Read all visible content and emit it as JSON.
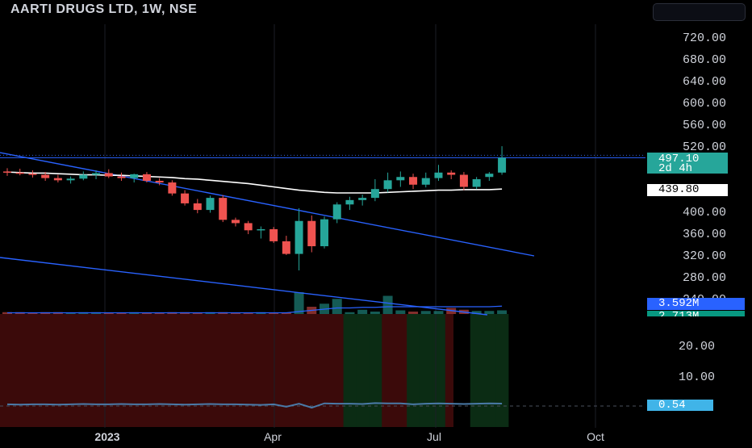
{
  "header": {
    "title": "AARTI DRUGS LTD, 1W, NSE"
  },
  "price_tags": {
    "last_price": "497.10",
    "countdown": "2d 4h",
    "ma_value": "439.80",
    "volume_1": "3.592M",
    "volume_2": "2.713M",
    "oscillator": "0.54"
  },
  "colors": {
    "up": "#26a69a",
    "down": "#ef5350",
    "trendline": "#2962ff",
    "moving_average": "#ffffff",
    "oscillator_line": "#4a7aa8",
    "up_zone": "#0b2c14",
    "down_zone": "#3b0a0a"
  },
  "chart_data": [
    {
      "type": "candlestick",
      "title": "AARTI DRUGS LTD, 1W, NSE",
      "y_ticks": [
        "720.00",
        "680.00",
        "640.00",
        "600.00",
        "560.00",
        "520.00",
        "400.00",
        "360.00",
        "320.00",
        "280.00",
        "240.00"
      ],
      "ylim": [
        230,
        740
      ],
      "x_ticks": [
        "2023",
        "Apr",
        "Jul",
        "Oct"
      ],
      "candles": [
        {
          "o": 472,
          "h": 478,
          "l": 464,
          "c": 470
        },
        {
          "o": 470,
          "h": 477,
          "l": 465,
          "c": 468
        },
        {
          "o": 468,
          "h": 474,
          "l": 461,
          "c": 466
        },
        {
          "o": 466,
          "h": 471,
          "l": 455,
          "c": 460
        },
        {
          "o": 460,
          "h": 466,
          "l": 452,
          "c": 456
        },
        {
          "o": 456,
          "h": 463,
          "l": 450,
          "c": 459
        },
        {
          "o": 459,
          "h": 472,
          "l": 456,
          "c": 466
        },
        {
          "o": 466,
          "h": 474,
          "l": 458,
          "c": 469
        },
        {
          "o": 469,
          "h": 476,
          "l": 460,
          "c": 463
        },
        {
          "o": 463,
          "h": 470,
          "l": 455,
          "c": 460
        },
        {
          "o": 460,
          "h": 468,
          "l": 452,
          "c": 467
        },
        {
          "o": 467,
          "h": 471,
          "l": 452,
          "c": 455
        },
        {
          "o": 455,
          "h": 460,
          "l": 447,
          "c": 452
        },
        {
          "o": 452,
          "h": 456,
          "l": 428,
          "c": 432
        },
        {
          "o": 432,
          "h": 438,
          "l": 410,
          "c": 414
        },
        {
          "o": 414,
          "h": 422,
          "l": 396,
          "c": 402
        },
        {
          "o": 402,
          "h": 428,
          "l": 397,
          "c": 424
        },
        {
          "o": 424,
          "h": 429,
          "l": 380,
          "c": 384
        },
        {
          "o": 384,
          "h": 388,
          "l": 372,
          "c": 378
        },
        {
          "o": 378,
          "h": 382,
          "l": 358,
          "c": 365
        },
        {
          "o": 365,
          "h": 372,
          "l": 350,
          "c": 367
        },
        {
          "o": 367,
          "h": 371,
          "l": 342,
          "c": 345
        },
        {
          "o": 345,
          "h": 355,
          "l": 320,
          "c": 322
        },
        {
          "o": 322,
          "h": 405,
          "l": 292,
          "c": 382
        },
        {
          "o": 382,
          "h": 392,
          "l": 325,
          "c": 336
        },
        {
          "o": 336,
          "h": 390,
          "l": 332,
          "c": 385
        },
        {
          "o": 385,
          "h": 416,
          "l": 378,
          "c": 412
        },
        {
          "o": 412,
          "h": 426,
          "l": 402,
          "c": 420
        },
        {
          "o": 420,
          "h": 430,
          "l": 410,
          "c": 424
        },
        {
          "o": 424,
          "h": 458,
          "l": 418,
          "c": 440
        },
        {
          "o": 440,
          "h": 470,
          "l": 434,
          "c": 456
        },
        {
          "o": 456,
          "h": 472,
          "l": 444,
          "c": 462
        },
        {
          "o": 462,
          "h": 468,
          "l": 440,
          "c": 448
        },
        {
          "o": 448,
          "h": 470,
          "l": 443,
          "c": 460
        },
        {
          "o": 460,
          "h": 484,
          "l": 455,
          "c": 470
        },
        {
          "o": 470,
          "h": 474,
          "l": 458,
          "c": 466
        },
        {
          "o": 466,
          "h": 471,
          "l": 438,
          "c": 444
        },
        {
          "o": 444,
          "h": 462,
          "l": 440,
          "c": 458
        },
        {
          "o": 462,
          "h": 471,
          "l": 455,
          "c": 468
        },
        {
          "o": 470,
          "h": 518,
          "l": 466,
          "c": 497
        }
      ],
      "moving_average": [
        471,
        470,
        469,
        469,
        468,
        467,
        466,
        466,
        465,
        465,
        464,
        463,
        462,
        461,
        459,
        458,
        456,
        454,
        452,
        450,
        447,
        444,
        441,
        438,
        436,
        434,
        433,
        433,
        433,
        433,
        434,
        435,
        436,
        437,
        438,
        438,
        439,
        439,
        439,
        440
      ],
      "volume": [
        3,
        3,
        2,
        3,
        3,
        2,
        3,
        3,
        2,
        2,
        3,
        2,
        2,
        3,
        3,
        2,
        3,
        3,
        2,
        2,
        3,
        2,
        2,
        36,
        12,
        17,
        25,
        3,
        7,
        4,
        30,
        6,
        4,
        5,
        5,
        10,
        7,
        5,
        5,
        6
      ],
      "volume_average": [
        2,
        2,
        2,
        2,
        2,
        2,
        2,
        2,
        2,
        2,
        2,
        2,
        2,
        2,
        2,
        2,
        2,
        2,
        2,
        2,
        2,
        2,
        2,
        4,
        6,
        8,
        10,
        10,
        11,
        11,
        12,
        12,
        12,
        12,
        12,
        12,
        12,
        12,
        12,
        13
      ]
    },
    {
      "type": "line",
      "y_ticks": [
        "20.00",
        "10.00"
      ],
      "ylim": [
        -5,
        30
      ],
      "values": [
        0.3,
        0.2,
        0.3,
        0.3,
        0.2,
        0.3,
        0.4,
        0.3,
        0.3,
        0.4,
        0.3,
        0.3,
        0.4,
        0.3,
        0.2,
        0.3,
        0.4,
        0.3,
        0.3,
        0.2,
        0.1,
        0.3,
        -0.5,
        0.5,
        -0.8,
        0.6,
        0.5,
        0.5,
        0.4,
        0.7,
        0.6,
        0.6,
        0.3,
        0.5,
        0.6,
        0.5,
        0.4,
        0.5,
        0.6,
        0.54
      ],
      "zones": [
        "down",
        "down",
        "down",
        "down",
        "down",
        "down",
        "down",
        "down",
        "down",
        "down",
        "down",
        "down",
        "down",
        "down",
        "down",
        "down",
        "down",
        "down",
        "down",
        "down",
        "down",
        "down",
        "down",
        "down",
        "down",
        "down",
        "down",
        "up",
        "up",
        "up",
        "down",
        "down",
        "up",
        "up",
        "up",
        "down",
        "down",
        "up",
        "up",
        "up"
      ]
    }
  ]
}
